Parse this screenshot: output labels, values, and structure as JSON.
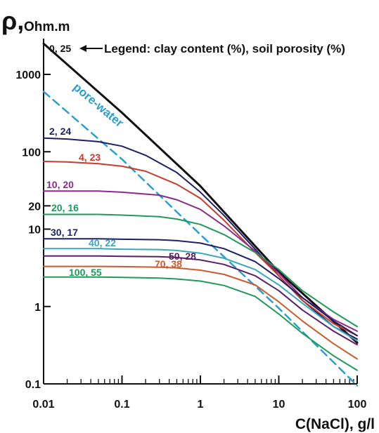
{
  "chart_data": {
    "type": "line",
    "xscale": "log",
    "yscale": "log",
    "xlim": [
      0.01,
      100
    ],
    "ylim": [
      0.1,
      3000
    ],
    "xlabel": "C(NaCl), g/l",
    "ylabel_symbol": "ρ,",
    "ylabel_unit": "Ohm.m",
    "x_tick_labels": [
      "0.01",
      "0.1",
      "1",
      "10",
      "100"
    ],
    "y_tick_labels": [
      "0.1",
      "1",
      "10",
      "20",
      "100",
      "1000"
    ],
    "x_ticks": [
      0.01,
      0.1,
      1,
      10,
      100
    ],
    "y_ticks": [
      0.1,
      1,
      10,
      20,
      100,
      1000
    ],
    "legend_text": "Legend: clay content (%), soil porosity (%)",
    "annotation_pore_water": "pore-water",
    "grid": false,
    "series": [
      {
        "name": "0, 25",
        "color": "#111111",
        "width": 3,
        "dash": false,
        "x": [
          0.01,
          0.1,
          1,
          10,
          100
        ],
        "y": [
          2500,
          320,
          36,
          2.8,
          0.34
        ]
      },
      {
        "name": "",
        "label": "pore-water",
        "color": "#2a9fcf",
        "width": 2.5,
        "dash": true,
        "x": [
          0.01,
          0.1,
          1,
          10,
          100
        ],
        "y": [
          600,
          80,
          8.5,
          0.95,
          0.095
        ]
      },
      {
        "name": "2, 24",
        "color": "#1f1f66",
        "width": 2,
        "dash": false,
        "x": [
          0.01,
          0.02,
          0.05,
          0.1,
          0.2,
          0.5,
          1,
          2,
          5,
          10,
          20,
          50,
          100
        ],
        "y": [
          150,
          146,
          135,
          118,
          90,
          54,
          30,
          15,
          5.5,
          2.5,
          1.2,
          0.55,
          0.38
        ]
      },
      {
        "name": "4, 23",
        "color": "#cc3a2a",
        "width": 2,
        "dash": false,
        "x": [
          0.01,
          0.02,
          0.05,
          0.1,
          0.2,
          0.5,
          1,
          2,
          5,
          10,
          20,
          50,
          100
        ],
        "y": [
          75,
          74,
          70,
          65,
          56,
          38,
          25,
          13,
          5,
          2.5,
          1.2,
          0.6,
          0.42
        ]
      },
      {
        "name": "10, 20",
        "color": "#8a2a8a",
        "width": 2,
        "dash": false,
        "x": [
          0.01,
          0.05,
          0.1,
          0.3,
          0.5,
          1,
          2,
          5,
          10,
          20,
          50,
          100
        ],
        "y": [
          31,
          31,
          30,
          27.5,
          24,
          18,
          11,
          5.2,
          2.7,
          1.3,
          0.68,
          0.48
        ]
      },
      {
        "name": "20, 16",
        "color": "#1f9a5a",
        "width": 2,
        "dash": false,
        "x": [
          0.01,
          0.05,
          0.1,
          0.3,
          0.5,
          1,
          2,
          5,
          10,
          20,
          50,
          100
        ],
        "y": [
          15.5,
          15.5,
          15.2,
          14.5,
          13.5,
          11.5,
          8.5,
          5,
          3,
          1.6,
          0.85,
          0.55
        ]
      },
      {
        "name": "30, 17",
        "color": "#1f1f66",
        "width": 2,
        "dash": false,
        "x": [
          0.01,
          0.05,
          0.1,
          0.3,
          0.5,
          1,
          2,
          5,
          10,
          20,
          50,
          100
        ],
        "y": [
          7.5,
          7.5,
          7.4,
          7.3,
          7.1,
          6.6,
          5.6,
          3.8,
          2.3,
          1.3,
          0.65,
          0.42
        ]
      },
      {
        "name": "40, 22",
        "color": "#3aa8b8",
        "width": 2,
        "dash": false,
        "x": [
          0.01,
          0.05,
          0.1,
          0.3,
          0.5,
          1,
          2,
          5,
          10,
          20,
          50,
          100
        ],
        "y": [
          5.6,
          5.6,
          5.5,
          5.45,
          5.3,
          4.9,
          4.2,
          3,
          1.9,
          1.1,
          0.55,
          0.36
        ]
      },
      {
        "name": "50, 28",
        "color": "#5a1f66",
        "width": 2,
        "dash": false,
        "x": [
          0.01,
          0.05,
          0.1,
          0.3,
          0.5,
          1,
          2,
          5,
          10,
          20,
          50,
          100
        ],
        "y": [
          4.5,
          4.5,
          4.45,
          4.4,
          4.3,
          4.0,
          3.5,
          2.5,
          1.6,
          0.9,
          0.48,
          0.32
        ]
      },
      {
        "name": "70, 38",
        "color": "#cc5a2a",
        "width": 2,
        "dash": false,
        "x": [
          0.01,
          0.05,
          0.1,
          0.3,
          0.5,
          1,
          2,
          5,
          10,
          20,
          50,
          100
        ],
        "y": [
          3.3,
          3.3,
          3.28,
          3.22,
          3.15,
          2.95,
          2.6,
          1.9,
          1.15,
          0.65,
          0.33,
          0.21
        ]
      },
      {
        "name": "100, 55",
        "color": "#1f9a5a",
        "width": 2,
        "dash": false,
        "x": [
          0.01,
          0.05,
          0.1,
          0.3,
          0.5,
          1,
          2,
          5,
          10,
          20,
          50,
          100
        ],
        "y": [
          2.4,
          2.4,
          2.38,
          2.33,
          2.27,
          2.13,
          1.87,
          1.35,
          0.8,
          0.45,
          0.23,
          0.15
        ]
      }
    ]
  }
}
